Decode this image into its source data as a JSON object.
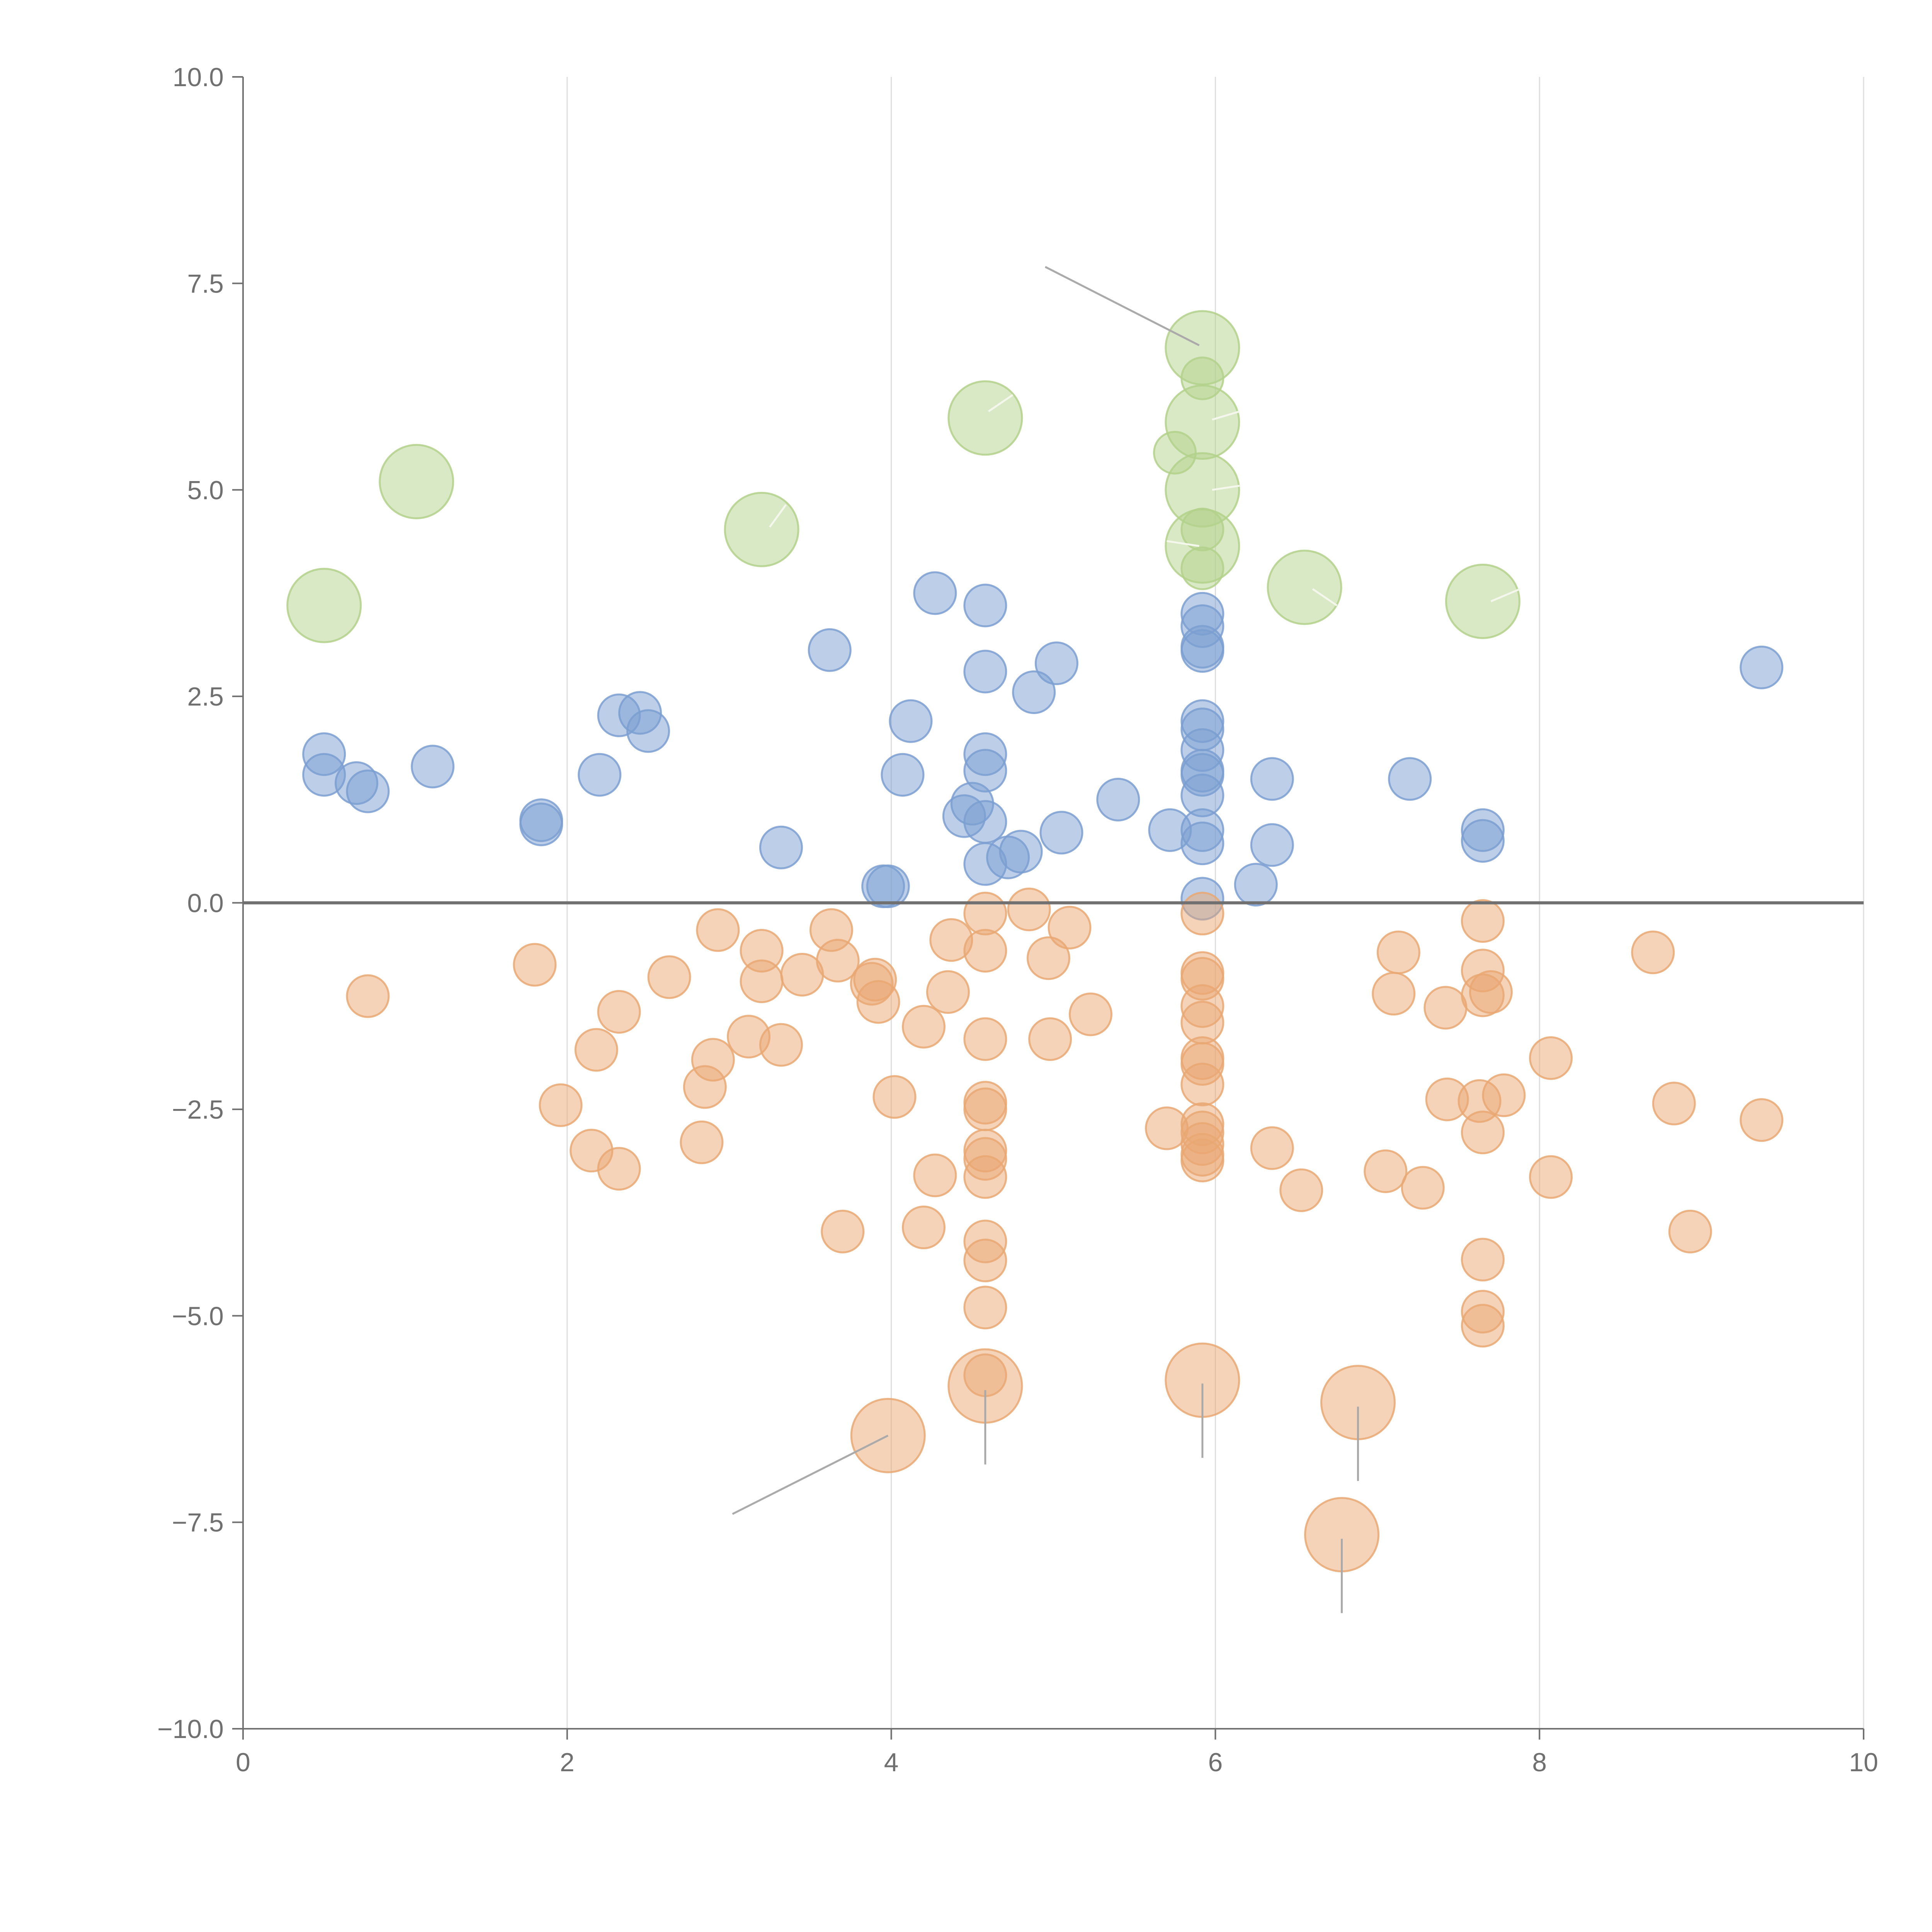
{
  "chart_data": {
    "type": "scatter",
    "title": "",
    "xlabel": "",
    "ylabel": "",
    "xlim": [
      0,
      10
    ],
    "ylim": [
      -10,
      10
    ],
    "x_ticks": [
      0,
      2,
      4,
      6,
      8,
      10
    ],
    "y_ticks": [
      -10,
      -7.5,
      -5,
      -2.5,
      0,
      2.5,
      5,
      7.5,
      10
    ],
    "x_tick_labels": [
      "0",
      "2",
      "4",
      "6",
      "8",
      "10"
    ],
    "y_tick_labels": [
      "−10.0",
      "−7.5",
      "−5.0",
      "−2.5",
      "0.0",
      "2.5",
      "5.0",
      "7.5",
      "10.0"
    ],
    "vertical_grid": true,
    "zero_line": true,
    "colors": {
      "positive": "#7b9fd1",
      "negative": "#e9a873",
      "highlight": "#b3d18b",
      "axis": "#707070",
      "grid": "#dddddd",
      "leader": "#aaaaaa"
    },
    "series": [
      {
        "name": "positive",
        "size": "small",
        "points": [
          [
            0.5,
            1.8
          ],
          [
            0.5,
            1.55
          ],
          [
            0.7,
            1.45
          ],
          [
            0.77,
            1.35
          ],
          [
            1.17,
            1.65
          ],
          [
            1.84,
            1.0
          ],
          [
            1.84,
            0.95
          ],
          [
            2.2,
            1.55
          ],
          [
            2.32,
            2.27
          ],
          [
            2.45,
            2.3
          ],
          [
            2.5,
            2.08
          ],
          [
            3.32,
            0.67
          ],
          [
            3.62,
            3.06
          ],
          [
            3.95,
            0.2
          ],
          [
            3.98,
            0.2
          ],
          [
            4.07,
            1.55
          ],
          [
            4.12,
            2.2
          ],
          [
            4.27,
            3.75
          ],
          [
            4.45,
            1.05
          ],
          [
            4.5,
            1.2
          ],
          [
            4.58,
            3.6
          ],
          [
            4.58,
            2.8
          ],
          [
            4.58,
            1.8
          ],
          [
            4.58,
            1.6
          ],
          [
            4.58,
            0.98
          ],
          [
            4.58,
            0.47
          ],
          [
            4.72,
            0.55
          ],
          [
            4.8,
            0.62
          ],
          [
            4.88,
            2.55
          ],
          [
            5.02,
            2.9
          ],
          [
            5.05,
            0.85
          ],
          [
            5.4,
            1.25
          ],
          [
            5.72,
            0.88
          ],
          [
            5.92,
            3.5
          ],
          [
            5.92,
            3.35
          ],
          [
            5.92,
            3.1
          ],
          [
            5.92,
            3.05
          ],
          [
            5.92,
            2.2
          ],
          [
            5.92,
            2.1
          ],
          [
            5.92,
            1.85
          ],
          [
            5.92,
            1.6
          ],
          [
            5.92,
            1.55
          ],
          [
            5.92,
            1.3
          ],
          [
            5.92,
            0.88
          ],
          [
            5.92,
            0.72
          ],
          [
            5.92,
            0.05
          ],
          [
            6.25,
            0.22
          ],
          [
            6.35,
            1.5
          ],
          [
            6.35,
            0.7
          ],
          [
            7.2,
            1.5
          ],
          [
            7.65,
            0.88
          ],
          [
            7.65,
            0.75
          ],
          [
            9.37,
            2.85
          ]
        ]
      },
      {
        "name": "negative",
        "size": "small",
        "points": [
          [
            0.77,
            -1.13
          ],
          [
            1.8,
            -0.75
          ],
          [
            1.96,
            -2.45
          ],
          [
            2.15,
            -3.0
          ],
          [
            2.18,
            -1.78
          ],
          [
            2.32,
            -3.22
          ],
          [
            2.32,
            -1.32
          ],
          [
            2.63,
            -0.9
          ],
          [
            2.83,
            -2.9
          ],
          [
            2.85,
            -2.23
          ],
          [
            2.9,
            -1.9
          ],
          [
            2.93,
            -0.33
          ],
          [
            3.12,
            -1.62
          ],
          [
            3.2,
            -0.95
          ],
          [
            3.2,
            -0.58
          ],
          [
            3.32,
            -1.72
          ],
          [
            3.45,
            -0.87
          ],
          [
            3.63,
            -0.33
          ],
          [
            3.67,
            -0.7
          ],
          [
            3.7,
            -3.98
          ],
          [
            3.88,
            -0.98
          ],
          [
            3.9,
            -0.93
          ],
          [
            3.92,
            -1.2
          ],
          [
            4.02,
            -2.35
          ],
          [
            4.2,
            -1.5
          ],
          [
            4.2,
            -3.93
          ],
          [
            4.27,
            -3.3
          ],
          [
            4.35,
            -1.08
          ],
          [
            4.37,
            -0.45
          ],
          [
            4.58,
            -0.13
          ],
          [
            4.58,
            -0.58
          ],
          [
            4.58,
            -1.65
          ],
          [
            4.58,
            -2.42
          ],
          [
            4.58,
            -2.5
          ],
          [
            4.58,
            -3.0
          ],
          [
            4.58,
            -3.1
          ],
          [
            4.58,
            -3.32
          ],
          [
            4.58,
            -4.1
          ],
          [
            4.58,
            -4.33
          ],
          [
            4.58,
            -4.9
          ],
          [
            4.58,
            -5.72
          ],
          [
            4.85,
            -0.08
          ],
          [
            4.97,
            -0.67
          ],
          [
            4.98,
            -1.65
          ],
          [
            5.1,
            -0.3
          ],
          [
            5.23,
            -1.35
          ],
          [
            5.7,
            -2.73
          ],
          [
            5.92,
            -0.13
          ],
          [
            5.92,
            -0.85
          ],
          [
            5.92,
            -0.92
          ],
          [
            5.92,
            -1.25
          ],
          [
            5.92,
            -1.45
          ],
          [
            5.92,
            -1.88
          ],
          [
            5.92,
            -1.95
          ],
          [
            5.92,
            -2.2
          ],
          [
            5.92,
            -2.68
          ],
          [
            5.92,
            -2.78
          ],
          [
            5.92,
            -2.92
          ],
          [
            5.92,
            -3.05
          ],
          [
            5.92,
            -3.12
          ],
          [
            6.35,
            -2.97
          ],
          [
            6.53,
            -3.48
          ],
          [
            7.05,
            -3.25
          ],
          [
            7.1,
            -1.1
          ],
          [
            7.13,
            -0.6
          ],
          [
            7.28,
            -3.45
          ],
          [
            7.42,
            -1.27
          ],
          [
            7.43,
            -2.38
          ],
          [
            7.63,
            -2.4
          ],
          [
            7.65,
            -0.22
          ],
          [
            7.65,
            -0.82
          ],
          [
            7.65,
            -1.12
          ],
          [
            7.65,
            -2.78
          ],
          [
            7.65,
            -4.32
          ],
          [
            7.65,
            -4.95
          ],
          [
            7.65,
            -5.12
          ],
          [
            7.7,
            -1.08
          ],
          [
            7.78,
            -2.33
          ],
          [
            8.07,
            -1.88
          ],
          [
            8.07,
            -3.32
          ],
          [
            8.7,
            -0.6
          ],
          [
            8.83,
            -2.43
          ],
          [
            8.93,
            -3.98
          ],
          [
            9.37,
            -2.63
          ]
        ]
      },
      {
        "name": "highlight",
        "size": "large",
        "points": [
          [
            0.5,
            3.6
          ],
          [
            1.07,
            5.1
          ],
          [
            3.2,
            4.52
          ],
          [
            4.58,
            5.87
          ],
          [
            5.92,
            6.72
          ],
          [
            5.92,
            5.82
          ],
          [
            5.92,
            5.0
          ],
          [
            5.92,
            4.32
          ],
          [
            6.55,
            3.82
          ],
          [
            7.65,
            3.65
          ]
        ]
      },
      {
        "name": "highlight",
        "size": "small",
        "points": [
          [
            5.75,
            5.45
          ],
          [
            5.92,
            6.35
          ],
          [
            5.92,
            4.52
          ],
          [
            5.92,
            4.05
          ]
        ]
      },
      {
        "name": "negative",
        "size": "large",
        "points": [
          [
            3.98,
            -6.45
          ],
          [
            4.58,
            -5.85
          ],
          [
            5.92,
            -5.78
          ],
          [
            6.88,
            -6.05
          ],
          [
            6.78,
            -7.65
          ]
        ]
      }
    ],
    "leader_lines": [
      [
        [
          4.95,
          7.7
        ],
        [
          5.9,
          6.75
        ]
      ],
      [
        [
          4.6,
          5.95
        ],
        [
          4.75,
          6.15
        ]
      ],
      [
        [
          5.98,
          5.85
        ],
        [
          6.15,
          5.95
        ]
      ],
      [
        [
          5.98,
          5.0
        ],
        [
          6.15,
          5.05
        ]
      ],
      [
        [
          5.9,
          4.32
        ],
        [
          5.7,
          4.38
        ]
      ],
      [
        [
          3.25,
          4.55
        ],
        [
          3.35,
          4.82
        ]
      ],
      [
        [
          6.6,
          3.8
        ],
        [
          6.75,
          3.6
        ]
      ],
      [
        [
          7.7,
          3.65
        ],
        [
          7.88,
          3.8
        ]
      ],
      [
        [
          3.98,
          -6.45
        ],
        [
          3.02,
          -7.4
        ]
      ],
      [
        [
          4.58,
          -5.9
        ],
        [
          4.58,
          -6.8
        ]
      ],
      [
        [
          5.92,
          -5.82
        ],
        [
          5.92,
          -6.72
        ]
      ],
      [
        [
          6.88,
          -6.1
        ],
        [
          6.88,
          -7.0
        ]
      ],
      [
        [
          6.78,
          -7.7
        ],
        [
          6.78,
          -8.6
        ]
      ]
    ]
  }
}
